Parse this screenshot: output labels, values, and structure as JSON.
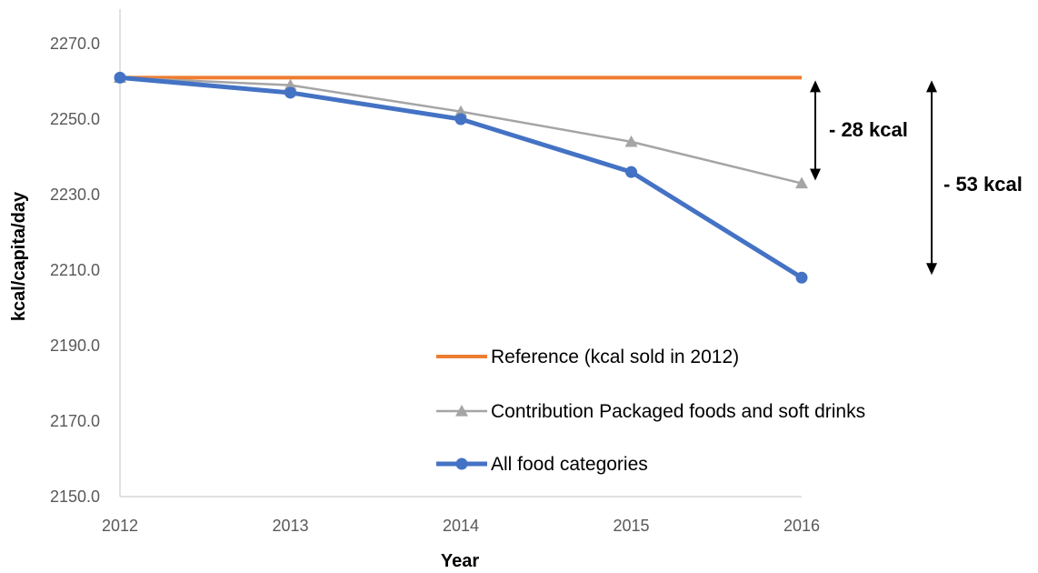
{
  "chart_data": {
    "type": "line",
    "xlabel": "Year",
    "ylabel": "kcal/capita/day",
    "x": [
      "2012",
      "2013",
      "2014",
      "2015",
      "2016"
    ],
    "ylim": [
      2150,
      2270
    ],
    "yticks": [
      "2150.0",
      "2170.0",
      "2190.0",
      "2210.0",
      "2230.0",
      "2250.0",
      "2270.0"
    ],
    "grid": false,
    "legend_position": "bottom-right (inside plot)",
    "series": [
      {
        "name": "Reference (kcal sold in 2012)",
        "color": "#ED7D31",
        "marker": "none",
        "values": [
          2261,
          2261,
          2261,
          2261,
          2261
        ]
      },
      {
        "name": "Contribution Packaged foods and soft drinks",
        "color": "#A5A5A5",
        "marker": "triangle",
        "values": [
          2261,
          2259,
          2252,
          2244,
          2233
        ]
      },
      {
        "name": "All food categories",
        "color": "#4472C4",
        "marker": "circle",
        "values": [
          2261,
          2257,
          2250,
          2236,
          2208
        ]
      }
    ],
    "annotations": [
      {
        "label": "- 28 kcal",
        "from": 2261,
        "to": 2233
      },
      {
        "label": "- 53 kcal",
        "from": 2261,
        "to": 2208
      }
    ]
  }
}
